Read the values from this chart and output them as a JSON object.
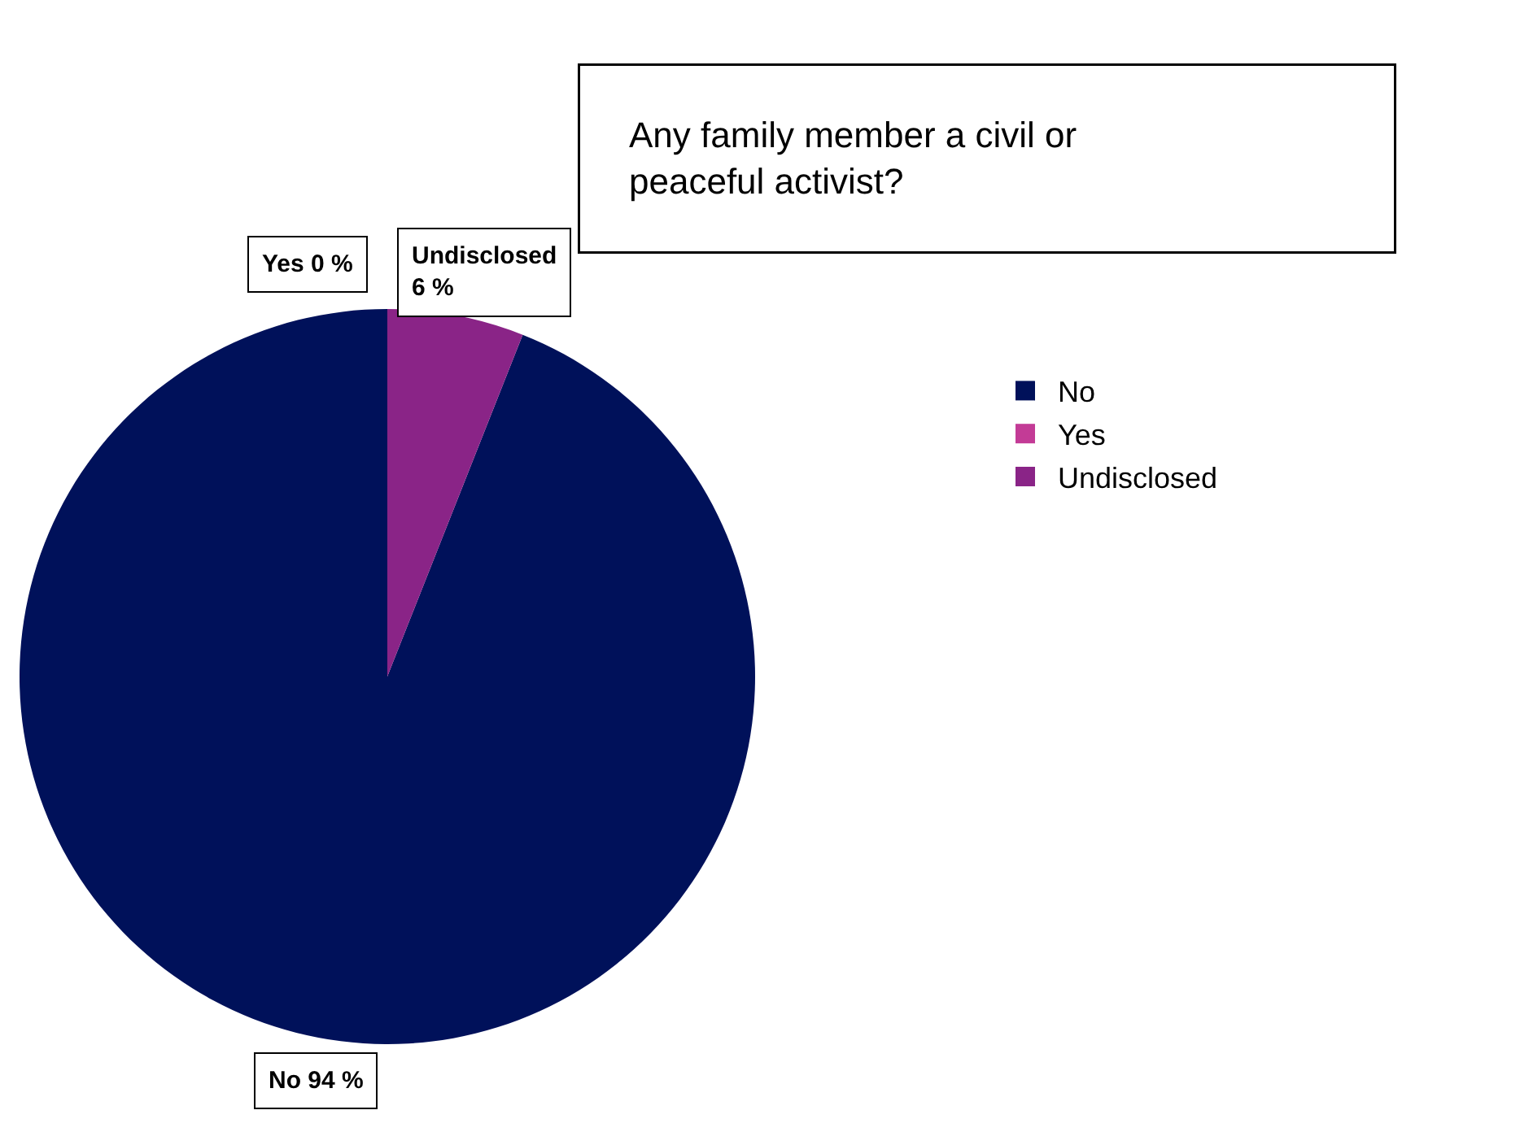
{
  "chart_data": {
    "type": "pie",
    "title": "Any family member a civil or peaceful activist?",
    "categories": [
      "No",
      "Yes",
      "Undisclosed"
    ],
    "values": [
      94,
      0,
      6
    ],
    "colors": [
      "#00115a",
      "#c33b96",
      "#8a2487"
    ],
    "value_labels": [
      "No 94 %",
      "Yes 0 %",
      "Undisclosed 6 %"
    ],
    "legend": "right"
  }
}
